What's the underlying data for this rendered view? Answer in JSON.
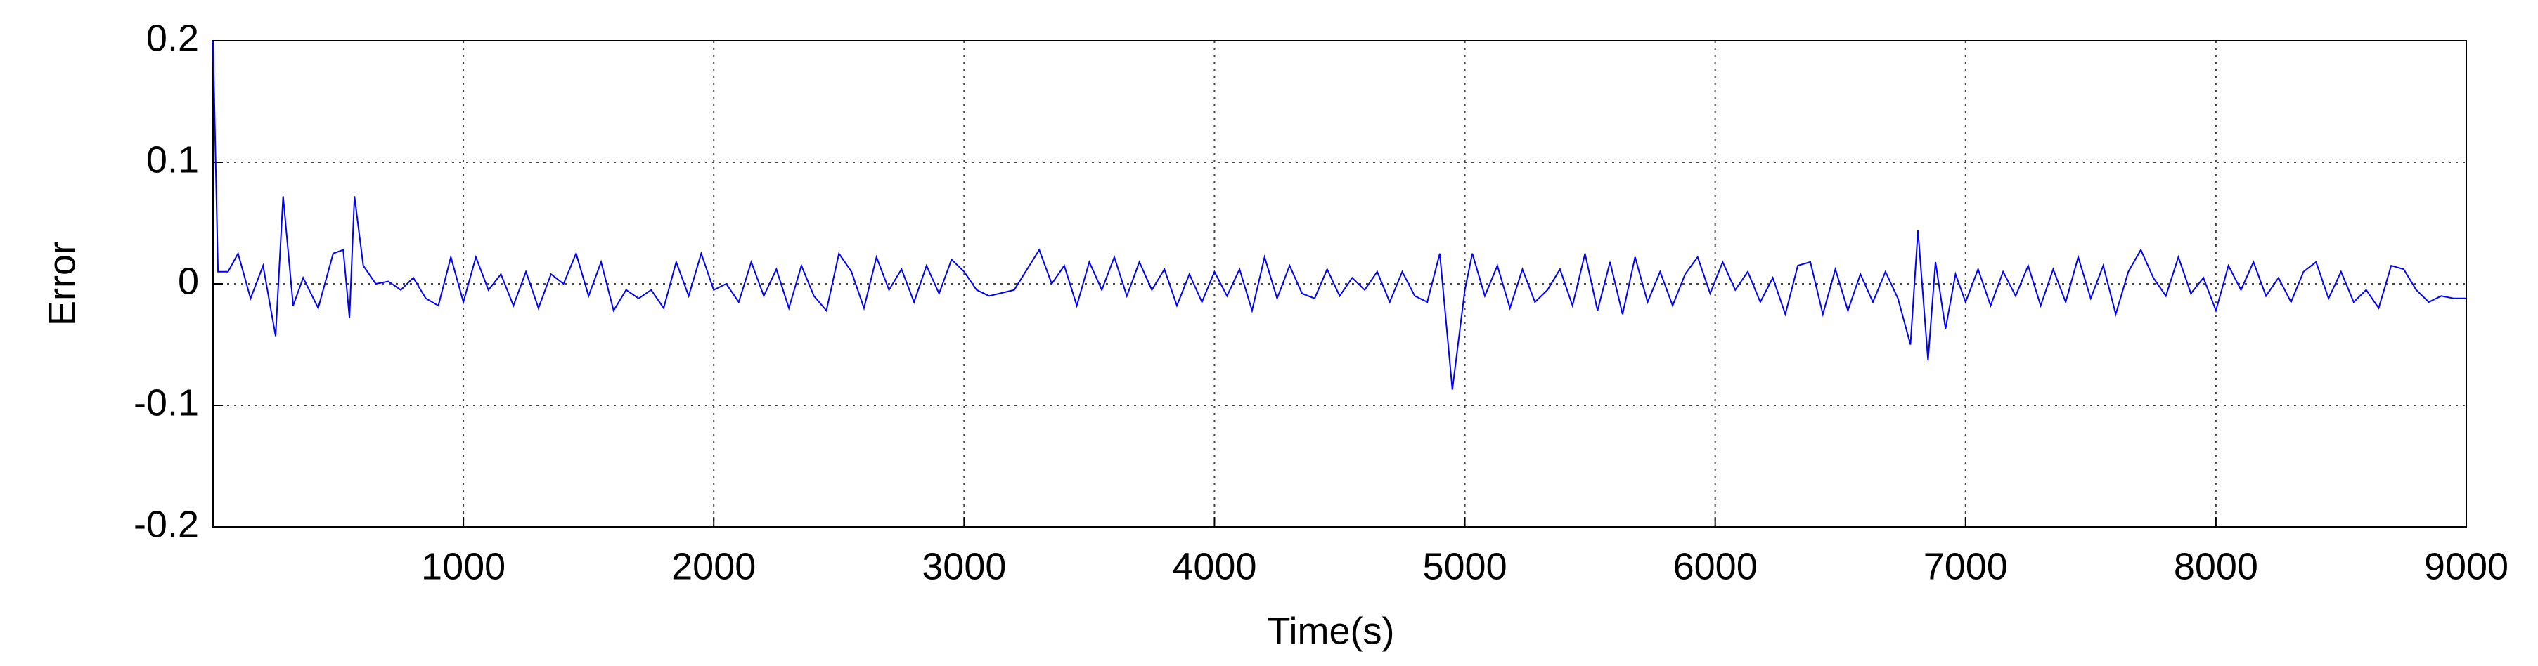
{
  "chart_data": {
    "type": "line",
    "xlabel": "Time(s)",
    "ylabel": "Error",
    "color": "#0000ff",
    "grid": true,
    "xlim": [
      0,
      9000
    ],
    "xticks": [
      1000,
      2000,
      3000,
      4000,
      5000,
      6000,
      7000,
      8000,
      9000
    ],
    "ylim": [
      -0.2,
      0.2
    ],
    "yticks": [
      -0.2,
      -0.1,
      0,
      0.1,
      0.2
    ],
    "x": [
      0,
      20,
      60,
      100,
      150,
      200,
      250,
      280,
      320,
      360,
      420,
      480,
      520,
      545,
      565,
      600,
      650,
      700,
      750,
      800,
      850,
      900,
      950,
      1000,
      1050,
      1100,
      1150,
      1200,
      1250,
      1300,
      1350,
      1400,
      1450,
      1500,
      1550,
      1600,
      1650,
      1700,
      1750,
      1800,
      1850,
      1900,
      1950,
      2000,
      2050,
      2100,
      2150,
      2200,
      2250,
      2300,
      2350,
      2400,
      2450,
      2500,
      2550,
      2600,
      2650,
      2700,
      2750,
      2800,
      2850,
      2900,
      2950,
      3000,
      3050,
      3100,
      3200,
      3300,
      3350,
      3400,
      3450,
      3500,
      3550,
      3600,
      3650,
      3700,
      3750,
      3800,
      3850,
      3900,
      3950,
      4000,
      4050,
      4100,
      4150,
      4200,
      4250,
      4300,
      4350,
      4400,
      4450,
      4500,
      4550,
      4600,
      4650,
      4700,
      4750,
      4800,
      4850,
      4900,
      4950,
      5000,
      5030,
      5080,
      5130,
      5180,
      5230,
      5280,
      5330,
      5380,
      5430,
      5480,
      5530,
      5580,
      5630,
      5680,
      5730,
      5780,
      5830,
      5880,
      5930,
      5980,
      6030,
      6080,
      6130,
      6180,
      6230,
      6280,
      6330,
      6380,
      6430,
      6480,
      6530,
      6580,
      6630,
      6680,
      6730,
      6780,
      6810,
      6850,
      6880,
      6920,
      6960,
      7000,
      7050,
      7100,
      7150,
      7200,
      7250,
      7300,
      7350,
      7400,
      7450,
      7500,
      7550,
      7600,
      7650,
      7700,
      7750,
      7800,
      7850,
      7900,
      7950,
      8000,
      8050,
      8100,
      8150,
      8200,
      8250,
      8300,
      8350,
      8400,
      8450,
      8500,
      8550,
      8600,
      8650,
      8700,
      8750,
      8800,
      8850,
      8900,
      8950,
      9000
    ],
    "values": [
      0.2,
      0.01,
      0.01,
      0.025,
      -0.012,
      0.015,
      -0.043,
      0.072,
      -0.018,
      0.005,
      -0.02,
      0.025,
      0.028,
      -0.028,
      0.072,
      0.015,
      0.0,
      0.002,
      -0.005,
      0.005,
      -0.012,
      -0.018,
      0.022,
      -0.015,
      0.022,
      -0.005,
      0.008,
      -0.018,
      0.01,
      -0.02,
      0.008,
      0.0,
      0.025,
      -0.01,
      0.018,
      -0.022,
      -0.005,
      -0.012,
      -0.005,
      -0.02,
      0.018,
      -0.01,
      0.025,
      -0.005,
      0.0,
      -0.015,
      0.018,
      -0.01,
      0.012,
      -0.02,
      0.015,
      -0.01,
      -0.022,
      0.025,
      0.01,
      -0.02,
      0.022,
      -0.005,
      0.012,
      -0.015,
      0.015,
      -0.008,
      0.02,
      0.01,
      -0.005,
      -0.01,
      -0.005,
      0.028,
      0.0,
      0.015,
      -0.018,
      0.018,
      -0.005,
      0.022,
      -0.01,
      0.018,
      -0.005,
      0.012,
      -0.018,
      0.008,
      -0.015,
      0.01,
      -0.01,
      0.012,
      -0.022,
      0.022,
      -0.012,
      0.015,
      -0.008,
      -0.012,
      0.012,
      -0.01,
      0.005,
      -0.005,
      0.01,
      -0.015,
      0.01,
      -0.01,
      -0.015,
      0.025,
      -0.087,
      -0.005,
      0.025,
      -0.01,
      0.015,
      -0.02,
      0.012,
      -0.015,
      -0.005,
      0.012,
      -0.018,
      0.025,
      -0.022,
      0.018,
      -0.025,
      0.022,
      -0.015,
      0.01,
      -0.018,
      0.008,
      0.022,
      -0.008,
      0.018,
      -0.005,
      0.01,
      -0.015,
      0.005,
      -0.025,
      0.015,
      0.018,
      -0.025,
      0.012,
      -0.022,
      0.008,
      -0.015,
      0.01,
      -0.012,
      -0.05,
      0.044,
      -0.063,
      0.018,
      -0.037,
      0.008,
      -0.015,
      0.012,
      -0.018,
      0.01,
      -0.01,
      0.015,
      -0.018,
      0.012,
      -0.015,
      0.022,
      -0.012,
      0.015,
      -0.025,
      0.01,
      0.028,
      0.005,
      -0.01,
      0.022,
      -0.008,
      0.005,
      -0.022,
      0.015,
      -0.005,
      0.018,
      -0.01,
      0.005,
      -0.015,
      0.01,
      0.018,
      -0.012,
      0.01,
      -0.015,
      -0.005,
      -0.02,
      0.015,
      0.012,
      -0.005,
      -0.015,
      -0.01,
      -0.012,
      -0.012
    ]
  }
}
